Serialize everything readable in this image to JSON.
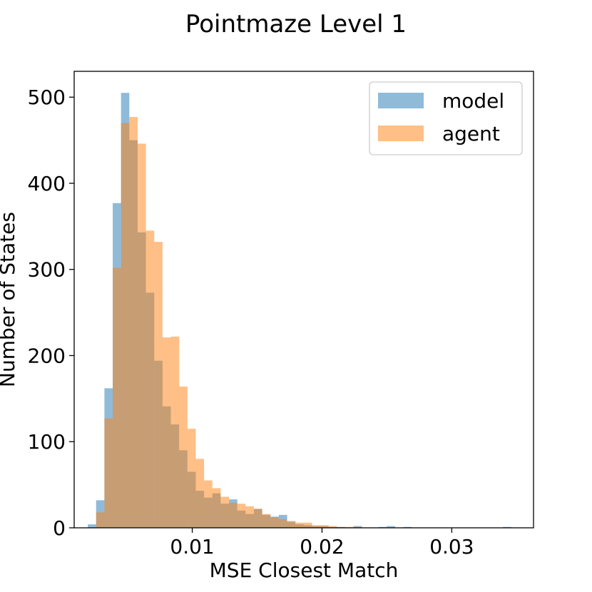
{
  "chart_data": {
    "type": "bar",
    "title": "Pointmaze Level 1",
    "xlabel": "MSE Closest Match",
    "ylabel": "Number of States",
    "xlim": [
      0.0009,
      0.0363
    ],
    "ylim": [
      0,
      530
    ],
    "xticks": [
      0.01,
      0.02,
      0.03
    ],
    "xtick_labels": [
      "0.01",
      "0.02",
      "0.03"
    ],
    "yticks": [
      0,
      100,
      200,
      300,
      400,
      500
    ],
    "ytick_labels": [
      "0",
      "100",
      "200",
      "300",
      "400",
      "500"
    ],
    "grid": false,
    "legend": "top-right",
    "bin_edges": [
      0.00195,
      0.00259,
      0.00323,
      0.00387,
      0.00451,
      0.00515,
      0.00579,
      0.00643,
      0.00707,
      0.00771,
      0.00835,
      0.00899,
      0.00963,
      0.01027,
      0.01091,
      0.01155,
      0.01219,
      0.01283,
      0.01347,
      0.01411,
      0.01475,
      0.01539,
      0.01603,
      0.01667,
      0.01731,
      0.01795,
      0.01859,
      0.01923,
      0.01987,
      0.02051,
      0.02115,
      0.02179,
      0.02243,
      0.02307,
      0.02371,
      0.02435,
      0.02499,
      0.02563,
      0.02627,
      0.02691,
      0.02755,
      0.02819,
      0.02883,
      0.02947,
      0.03011,
      0.03075,
      0.03139,
      0.03203,
      0.03267,
      0.03331,
      0.03395,
      0.03459
    ],
    "series": [
      {
        "name": "model",
        "color": "#1f77b4",
        "opacity": 0.5,
        "values": [
          4,
          32,
          162,
          377,
          505,
          450,
          343,
          273,
          194,
          141,
          120,
          90,
          65,
          43,
          35,
          40,
          28,
          33,
          20,
          16,
          22,
          15,
          13,
          15,
          7,
          4,
          3,
          2,
          2,
          1,
          1,
          0,
          2,
          0,
          0,
          1,
          2,
          0,
          1,
          0,
          0,
          0,
          0,
          0,
          0,
          0,
          0,
          0,
          0,
          0,
          1
        ]
      },
      {
        "name": "agent",
        "color": "#ff7f0e",
        "opacity": 0.5,
        "values": [
          0,
          18,
          127,
          302,
          470,
          477,
          446,
          345,
          332,
          221,
          222,
          164,
          115,
          80,
          55,
          46,
          36,
          29,
          28,
          25,
          22,
          16,
          12,
          10,
          8,
          6,
          6,
          3,
          3,
          2,
          1,
          1,
          1,
          0,
          0,
          0,
          0,
          0,
          0,
          0,
          0,
          0,
          0,
          0,
          0,
          0,
          0,
          0,
          0,
          0,
          0
        ]
      }
    ]
  }
}
